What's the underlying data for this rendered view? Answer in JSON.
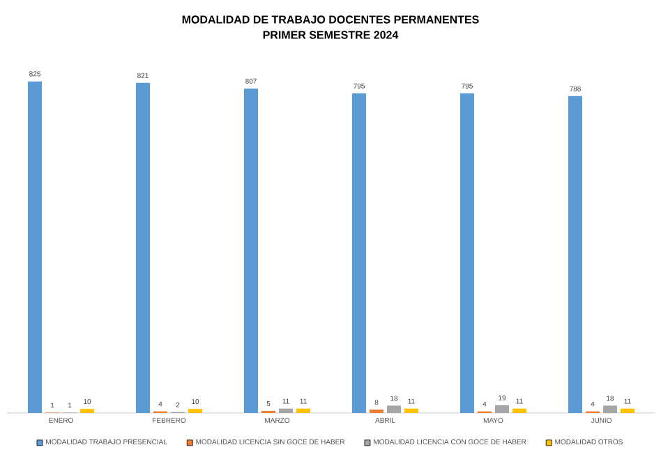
{
  "chart_data": {
    "type": "bar",
    "title": "MODALIDAD DE TRABAJO DOCENTES PERMANENTES",
    "subtitle": "PRIMER SEMESTRE 2024",
    "categories": [
      "ENERO",
      "FEBRERO",
      "MARZO",
      "ABRIL",
      "MAYO",
      "JUNIO"
    ],
    "series": [
      {
        "name": "MODALIDAD TRABAJO PRESENCIAL",
        "color": "#5b9bd5",
        "values": [
          825,
          821,
          807,
          795,
          795,
          788
        ]
      },
      {
        "name": "MODALIDAD LICENCIA SIN GOCE DE HABER",
        "color": "#ed7d31",
        "values": [
          1,
          4,
          5,
          8,
          4,
          4
        ]
      },
      {
        "name": "MODALIDAD LICENCIA CON GOCE DE HABER",
        "color": "#a5a5a5",
        "values": [
          1,
          2,
          11,
          18,
          19,
          18
        ]
      },
      {
        "name": "MODALIDAD OTROS",
        "color": "#ffc000",
        "values": [
          10,
          10,
          11,
          11,
          11,
          11
        ]
      }
    ],
    "data_labels": true,
    "legend": "bottom"
  }
}
